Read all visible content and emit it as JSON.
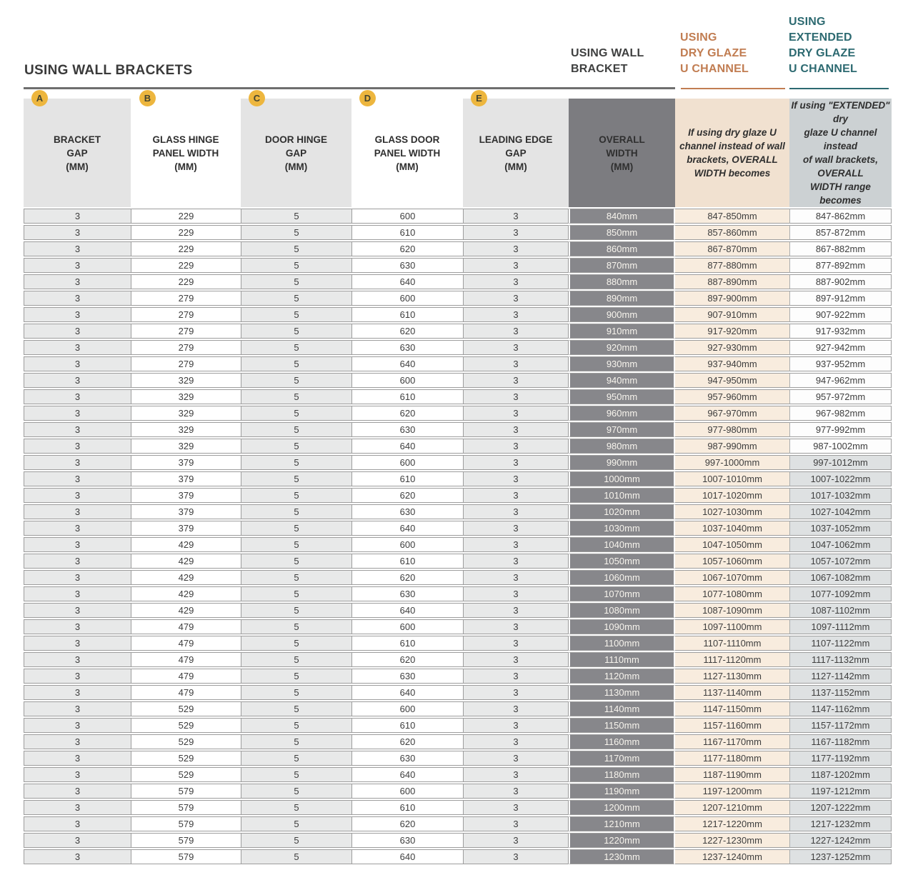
{
  "page_title": "USING WALL BRACKETS",
  "group_headers": {
    "wall_bracket": "USING WALL\nBRACKET",
    "dry_glaze": "USING\nDRY GLAZE\nU CHANNEL",
    "extended": "USING\nEXTENDED\nDRY GLAZE\nU CHANNEL"
  },
  "colors": {
    "accent_orange": "#c17d52",
    "accent_teal": "#2d6a71",
    "badge_yellow": "#edb63e",
    "dark_column": "#87878b",
    "dry_glaze_cell": "#f8ecde",
    "extended_shaded_cell": "#dee1e2"
  },
  "columns": {
    "a": {
      "badge": "A",
      "label": "BRACKET\nGAP\n(MM)"
    },
    "b": {
      "badge": "B",
      "label": "GLASS HINGE\nPANEL WIDTH\n(MM)"
    },
    "c": {
      "badge": "C",
      "label": "DOOR HINGE\nGAP\n(MM)"
    },
    "d": {
      "badge": "D",
      "label": "GLASS DOOR\nPANEL WIDTH\n(MM)"
    },
    "e": {
      "badge": "E",
      "label": "LEADING EDGE\nGAP\n(MM)"
    },
    "overall": {
      "label": "OVERALL\nWIDTH\n(MM)"
    },
    "dry": {
      "label": "If using dry glaze U\nchannel instead of wall\nbrackets, OVERALL\nWIDTH becomes"
    },
    "extended": {
      "label": "If using \"EXTENDED\" dry\nglaze U channel instead\nof wall brackets, OVERALL\nWIDTH range becomes"
    }
  },
  "table": {
    "rows": [
      {
        "a": "3",
        "b": "229",
        "c": "5",
        "d": "600",
        "e": "3",
        "overall": "840mm",
        "dry": "847-850mm",
        "ext": "847-862mm",
        "ext_shaded": false
      },
      {
        "a": "3",
        "b": "229",
        "c": "5",
        "d": "610",
        "e": "3",
        "overall": "850mm",
        "dry": "857-860mm",
        "ext": "857-872mm",
        "ext_shaded": false
      },
      {
        "a": "3",
        "b": "229",
        "c": "5",
        "d": "620",
        "e": "3",
        "overall": "860mm",
        "dry": "867-870mm",
        "ext": "867-882mm",
        "ext_shaded": false
      },
      {
        "a": "3",
        "b": "229",
        "c": "5",
        "d": "630",
        "e": "3",
        "overall": "870mm",
        "dry": "877-880mm",
        "ext": "877-892mm",
        "ext_shaded": false
      },
      {
        "a": "3",
        "b": "229",
        "c": "5",
        "d": "640",
        "e": "3",
        "overall": "880mm",
        "dry": "887-890mm",
        "ext": "887-902mm",
        "ext_shaded": false
      },
      {
        "a": "3",
        "b": "279",
        "c": "5",
        "d": "600",
        "e": "3",
        "overall": "890mm",
        "dry": "897-900mm",
        "ext": "897-912mm",
        "ext_shaded": false
      },
      {
        "a": "3",
        "b": "279",
        "c": "5",
        "d": "610",
        "e": "3",
        "overall": "900mm",
        "dry": "907-910mm",
        "ext": "907-922mm",
        "ext_shaded": false
      },
      {
        "a": "3",
        "b": "279",
        "c": "5",
        "d": "620",
        "e": "3",
        "overall": "910mm",
        "dry": "917-920mm",
        "ext": "917-932mm",
        "ext_shaded": false
      },
      {
        "a": "3",
        "b": "279",
        "c": "5",
        "d": "630",
        "e": "3",
        "overall": "920mm",
        "dry": "927-930mm",
        "ext": "927-942mm",
        "ext_shaded": false
      },
      {
        "a": "3",
        "b": "279",
        "c": "5",
        "d": "640",
        "e": "3",
        "overall": "930mm",
        "dry": "937-940mm",
        "ext": "937-952mm",
        "ext_shaded": false
      },
      {
        "a": "3",
        "b": "329",
        "c": "5",
        "d": "600",
        "e": "3",
        "overall": "940mm",
        "dry": "947-950mm",
        "ext": "947-962mm",
        "ext_shaded": false
      },
      {
        "a": "3",
        "b": "329",
        "c": "5",
        "d": "610",
        "e": "3",
        "overall": "950mm",
        "dry": "957-960mm",
        "ext": "957-972mm",
        "ext_shaded": false
      },
      {
        "a": "3",
        "b": "329",
        "c": "5",
        "d": "620",
        "e": "3",
        "overall": "960mm",
        "dry": "967-970mm",
        "ext": "967-982mm",
        "ext_shaded": false
      },
      {
        "a": "3",
        "b": "329",
        "c": "5",
        "d": "630",
        "e": "3",
        "overall": "970mm",
        "dry": "977-980mm",
        "ext": "977-992mm",
        "ext_shaded": false
      },
      {
        "a": "3",
        "b": "329",
        "c": "5",
        "d": "640",
        "e": "3",
        "overall": "980mm",
        "dry": "987-990mm",
        "ext": "987-1002mm",
        "ext_shaded": false
      },
      {
        "a": "3",
        "b": "379",
        "c": "5",
        "d": "600",
        "e": "3",
        "overall": "990mm",
        "dry": "997-1000mm",
        "ext": "997-1012mm",
        "ext_shaded": true
      },
      {
        "a": "3",
        "b": "379",
        "c": "5",
        "d": "610",
        "e": "3",
        "overall": "1000mm",
        "dry": "1007-1010mm",
        "ext": "1007-1022mm",
        "ext_shaded": true
      },
      {
        "a": "3",
        "b": "379",
        "c": "5",
        "d": "620",
        "e": "3",
        "overall": "1010mm",
        "dry": "1017-1020mm",
        "ext": "1017-1032mm",
        "ext_shaded": true
      },
      {
        "a": "3",
        "b": "379",
        "c": "5",
        "d": "630",
        "e": "3",
        "overall": "1020mm",
        "dry": "1027-1030mm",
        "ext": "1027-1042mm",
        "ext_shaded": true
      },
      {
        "a": "3",
        "b": "379",
        "c": "5",
        "d": "640",
        "e": "3",
        "overall": "1030mm",
        "dry": "1037-1040mm",
        "ext": "1037-1052mm",
        "ext_shaded": true
      },
      {
        "a": "3",
        "b": "429",
        "c": "5",
        "d": "600",
        "e": "3",
        "overall": "1040mm",
        "dry": "1047-1050mm",
        "ext": "1047-1062mm",
        "ext_shaded": true
      },
      {
        "a": "3",
        "b": "429",
        "c": "5",
        "d": "610",
        "e": "3",
        "overall": "1050mm",
        "dry": "1057-1060mm",
        "ext": "1057-1072mm",
        "ext_shaded": true
      },
      {
        "a": "3",
        "b": "429",
        "c": "5",
        "d": "620",
        "e": "3",
        "overall": "1060mm",
        "dry": "1067-1070mm",
        "ext": "1067-1082mm",
        "ext_shaded": true
      },
      {
        "a": "3",
        "b": "429",
        "c": "5",
        "d": "630",
        "e": "3",
        "overall": "1070mm",
        "dry": "1077-1080mm",
        "ext": "1077-1092mm",
        "ext_shaded": true
      },
      {
        "a": "3",
        "b": "429",
        "c": "5",
        "d": "640",
        "e": "3",
        "overall": "1080mm",
        "dry": "1087-1090mm",
        "ext": "1087-1102mm",
        "ext_shaded": true
      },
      {
        "a": "3",
        "b": "479",
        "c": "5",
        "d": "600",
        "e": "3",
        "overall": "1090mm",
        "dry": "1097-1100mm",
        "ext": "1097-1112mm",
        "ext_shaded": true
      },
      {
        "a": "3",
        "b": "479",
        "c": "5",
        "d": "610",
        "e": "3",
        "overall": "1100mm",
        "dry": "1107-1110mm",
        "ext": "1107-1122mm",
        "ext_shaded": true
      },
      {
        "a": "3",
        "b": "479",
        "c": "5",
        "d": "620",
        "e": "3",
        "overall": "1110mm",
        "dry": "1117-1120mm",
        "ext": "1117-1132mm",
        "ext_shaded": true
      },
      {
        "a": "3",
        "b": "479",
        "c": "5",
        "d": "630",
        "e": "3",
        "overall": "1120mm",
        "dry": "1127-1130mm",
        "ext": "1127-1142mm",
        "ext_shaded": true
      },
      {
        "a": "3",
        "b": "479",
        "c": "5",
        "d": "640",
        "e": "3",
        "overall": "1130mm",
        "dry": "1137-1140mm",
        "ext": "1137-1152mm",
        "ext_shaded": true
      },
      {
        "a": "3",
        "b": "529",
        "c": "5",
        "d": "600",
        "e": "3",
        "overall": "1140mm",
        "dry": "1147-1150mm",
        "ext": "1147-1162mm",
        "ext_shaded": true
      },
      {
        "a": "3",
        "b": "529",
        "c": "5",
        "d": "610",
        "e": "3",
        "overall": "1150mm",
        "dry": "1157-1160mm",
        "ext": "1157-1172mm",
        "ext_shaded": true
      },
      {
        "a": "3",
        "b": "529",
        "c": "5",
        "d": "620",
        "e": "3",
        "overall": "1160mm",
        "dry": "1167-1170mm",
        "ext": "1167-1182mm",
        "ext_shaded": true
      },
      {
        "a": "3",
        "b": "529",
        "c": "5",
        "d": "630",
        "e": "3",
        "overall": "1170mm",
        "dry": "1177-1180mm",
        "ext": "1177-1192mm",
        "ext_shaded": true
      },
      {
        "a": "3",
        "b": "529",
        "c": "5",
        "d": "640",
        "e": "3",
        "overall": "1180mm",
        "dry": "1187-1190mm",
        "ext": "1187-1202mm",
        "ext_shaded": true
      },
      {
        "a": "3",
        "b": "579",
        "c": "5",
        "d": "600",
        "e": "3",
        "overall": "1190mm",
        "dry": "1197-1200mm",
        "ext": "1197-1212mm",
        "ext_shaded": true
      },
      {
        "a": "3",
        "b": "579",
        "c": "5",
        "d": "610",
        "e": "3",
        "overall": "1200mm",
        "dry": "1207-1210mm",
        "ext": "1207-1222mm",
        "ext_shaded": true
      },
      {
        "a": "3",
        "b": "579",
        "c": "5",
        "d": "620",
        "e": "3",
        "overall": "1210mm",
        "dry": "1217-1220mm",
        "ext": "1217-1232mm",
        "ext_shaded": true
      },
      {
        "a": "3",
        "b": "579",
        "c": "5",
        "d": "630",
        "e": "3",
        "overall": "1220mm",
        "dry": "1227-1230mm",
        "ext": "1227-1242mm",
        "ext_shaded": true
      },
      {
        "a": "3",
        "b": "579",
        "c": "5",
        "d": "640",
        "e": "3",
        "overall": "1230mm",
        "dry": "1237-1240mm",
        "ext": "1237-1252mm",
        "ext_shaded": true
      }
    ]
  }
}
